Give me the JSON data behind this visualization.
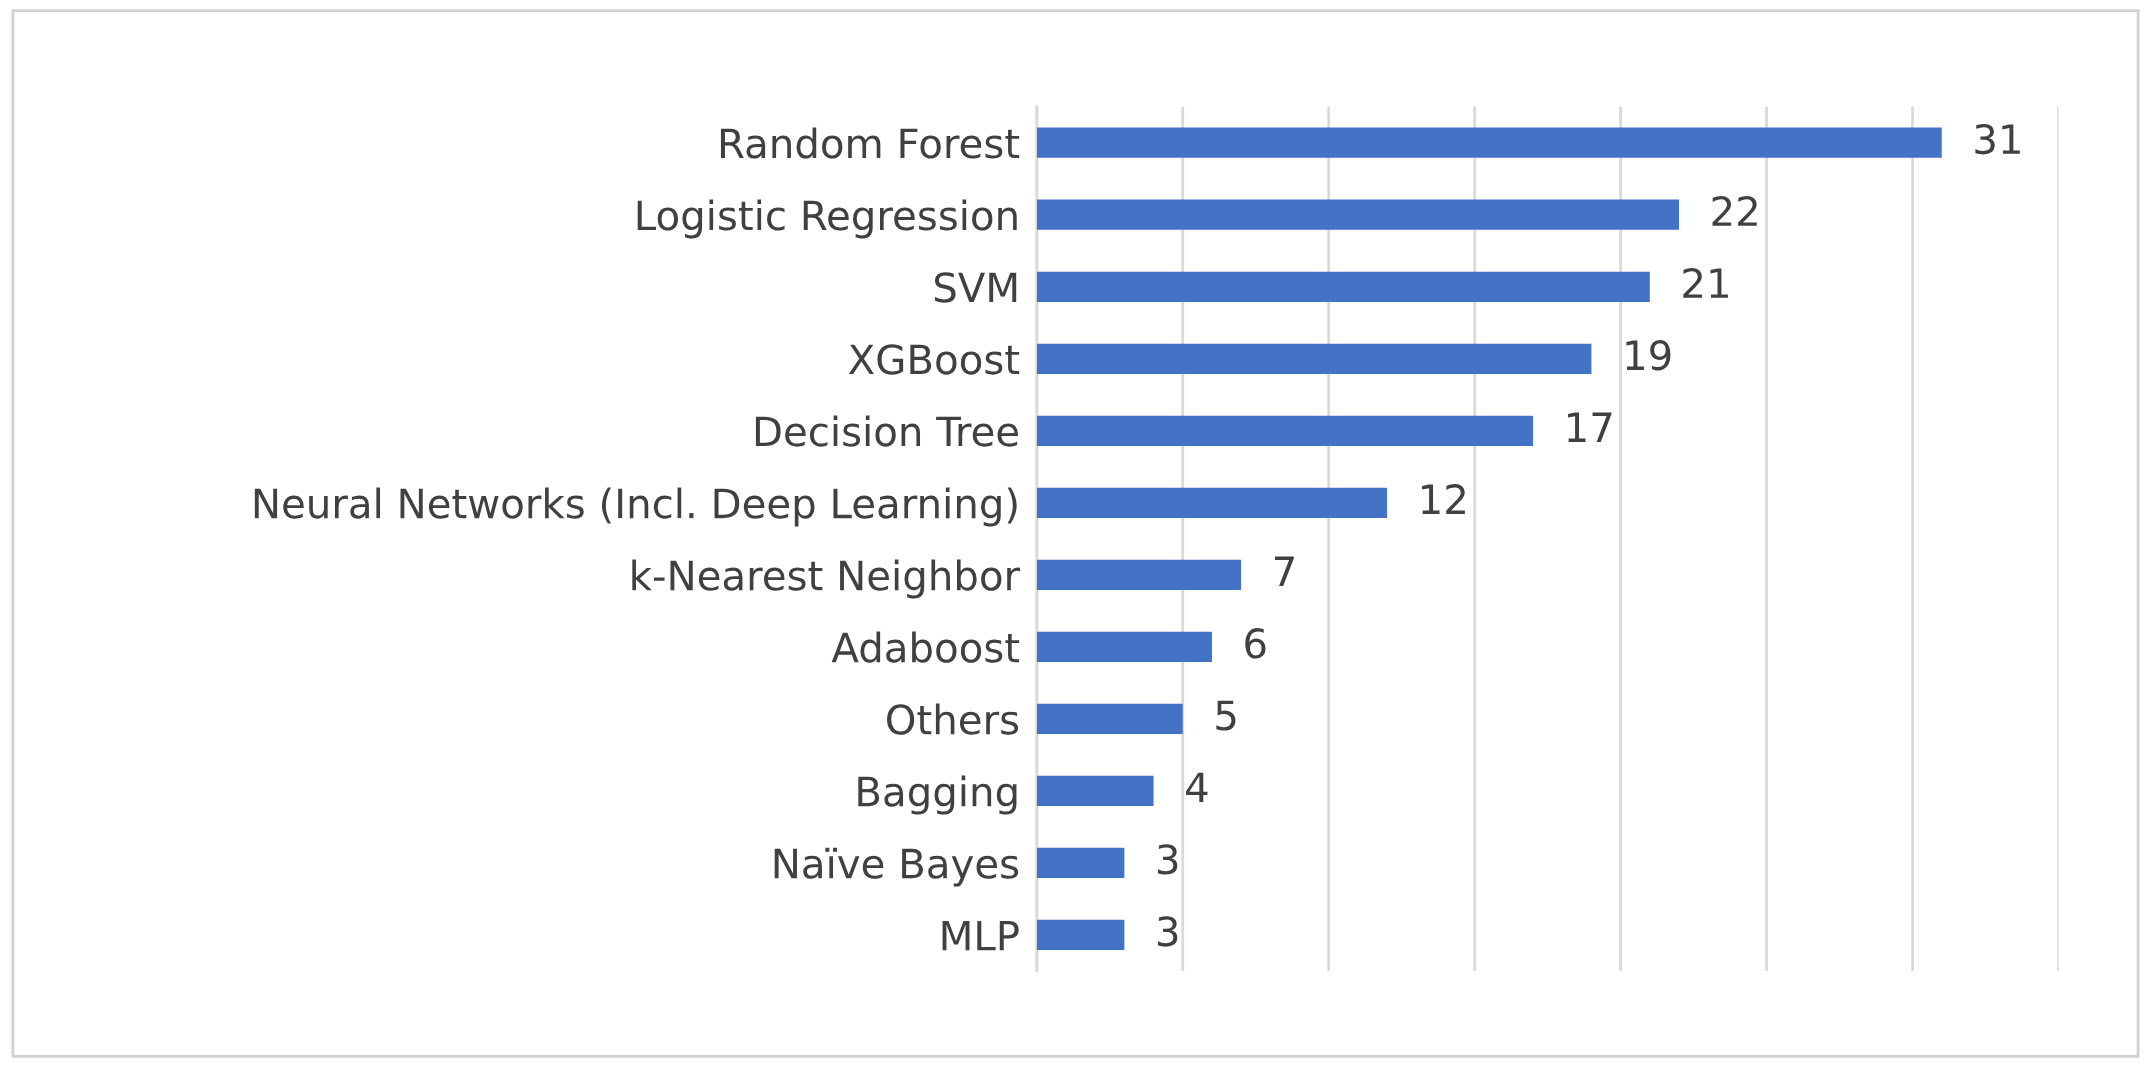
{
  "chart_data": {
    "type": "bar",
    "orientation": "horizontal",
    "categories": [
      "Random Forest",
      "Logistic Regression",
      "SVM",
      "XGBoost",
      "Decision Tree",
      "Neural Networks (Incl. Deep Learning)",
      "k-Nearest Neighbor",
      "Adaboost",
      "Others",
      "Bagging",
      "Naïve Bayes",
      "MLP"
    ],
    "values": [
      31,
      22,
      21,
      19,
      17,
      12,
      7,
      6,
      5,
      4,
      3,
      3
    ],
    "color": "#4472c4",
    "xlim": [
      0,
      35
    ],
    "xticks": [
      {
        "value": 0,
        "label": null
      },
      {
        "value": 5,
        "label": null
      },
      {
        "value": 10,
        "label": null
      },
      {
        "value": 15,
        "label": null
      },
      {
        "value": 20,
        "label": null
      },
      {
        "value": 25,
        "label": null
      },
      {
        "value": 30,
        "label": null
      },
      {
        "value": 35,
        "label": null
      }
    ],
    "grid": "x",
    "tick_labels": "y",
    "data_labels": true
  }
}
